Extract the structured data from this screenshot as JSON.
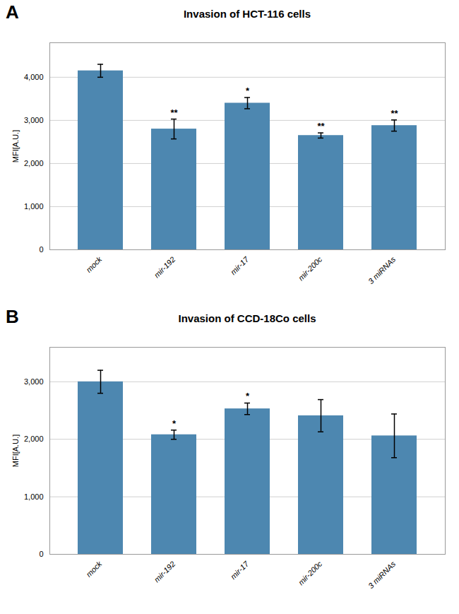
{
  "chart_data": [
    {
      "type": "bar",
      "panel_label": "A",
      "title": "Invasion of HCT-116 cells",
      "categories": [
        "mock",
        "mir-192",
        "mir-17",
        "mir-200c",
        "3 miRNAs"
      ],
      "values": [
        4150,
        2800,
        3400,
        2650,
        2880
      ],
      "errors": [
        150,
        230,
        130,
        60,
        130
      ],
      "significance": [
        null,
        "**",
        "*",
        "**",
        "**"
      ],
      "ylabel": "MFI[A.U.]",
      "color": "#4d87b0",
      "ylim": [
        0,
        4800
      ],
      "yticks": [
        0,
        1000,
        2000,
        3000,
        4000
      ],
      "grid": true
    },
    {
      "type": "bar",
      "panel_label": "B",
      "title": "Invasion of CCD-18Co cells",
      "categories": [
        "mock",
        "mir-192",
        "mir-17",
        "mir-200c",
        "3 miRNAs"
      ],
      "values": [
        3000,
        2080,
        2530,
        2410,
        2060
      ],
      "errors": [
        200,
        80,
        100,
        280,
        380
      ],
      "significance": [
        null,
        "*",
        "*",
        null,
        null
      ],
      "ylabel": "MFI[A.U.]",
      "color": "#4d87b0",
      "ylim": [
        0,
        3600
      ],
      "yticks": [
        0,
        1000,
        2000,
        3000
      ],
      "grid": true
    }
  ]
}
